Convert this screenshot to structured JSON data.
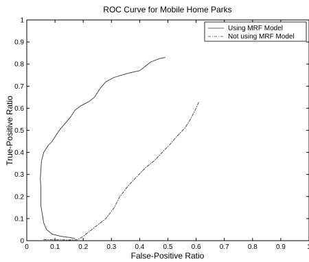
{
  "chart_data": {
    "type": "line",
    "title": "ROC Curve for Mobile Home Parks",
    "xlabel": "False-Positive Ratio",
    "ylabel": "True-Positive Ratio",
    "xlim": [
      0,
      1
    ],
    "ylim": [
      0,
      1
    ],
    "x_ticks": [
      "0",
      "0.1",
      "0.2",
      "0.3",
      "0.4",
      "0.5",
      "0.6",
      "0.7",
      "0.8",
      "0.9",
      "1"
    ],
    "y_ticks": [
      "0",
      "0.1",
      "0.2",
      "0.3",
      "0.4",
      "0.5",
      "0.6",
      "0.7",
      "0.8",
      "0.9",
      "1"
    ],
    "grid": false,
    "legend_position": "top-right",
    "series": [
      {
        "name": "Using MRF Model",
        "line_style": "solid",
        "color": "#333333",
        "points": [
          [
            0.17,
            0.01
          ],
          [
            0.15,
            0.015
          ],
          [
            0.12,
            0.02
          ],
          [
            0.09,
            0.03
          ],
          [
            0.07,
            0.05
          ],
          [
            0.06,
            0.08
          ],
          [
            0.055,
            0.12
          ],
          [
            0.05,
            0.16
          ],
          [
            0.05,
            0.2
          ],
          [
            0.05,
            0.24
          ],
          [
            0.048,
            0.28
          ],
          [
            0.05,
            0.32
          ],
          [
            0.052,
            0.36
          ],
          [
            0.06,
            0.4
          ],
          [
            0.075,
            0.43
          ],
          [
            0.09,
            0.45
          ],
          [
            0.1,
            0.47
          ],
          [
            0.115,
            0.5
          ],
          [
            0.135,
            0.53
          ],
          [
            0.155,
            0.56
          ],
          [
            0.17,
            0.59
          ],
          [
            0.19,
            0.61
          ],
          [
            0.22,
            0.63
          ],
          [
            0.24,
            0.65
          ],
          [
            0.26,
            0.69
          ],
          [
            0.28,
            0.72
          ],
          [
            0.31,
            0.74
          ],
          [
            0.35,
            0.755
          ],
          [
            0.38,
            0.765
          ],
          [
            0.4,
            0.77
          ],
          [
            0.42,
            0.79
          ],
          [
            0.44,
            0.81
          ],
          [
            0.47,
            0.825
          ],
          [
            0.49,
            0.83
          ]
        ]
      },
      {
        "name": "Not using MRF Model",
        "line_style": "dash-dot",
        "color": "#333333",
        "points": [
          [
            0.06,
            0.005
          ],
          [
            0.1,
            0.004
          ],
          [
            0.15,
            0.003
          ],
          [
            0.18,
            0.004
          ],
          [
            0.2,
            0.02
          ],
          [
            0.22,
            0.04
          ],
          [
            0.25,
            0.07
          ],
          [
            0.28,
            0.1
          ],
          [
            0.31,
            0.15
          ],
          [
            0.33,
            0.2
          ],
          [
            0.36,
            0.25
          ],
          [
            0.39,
            0.29
          ],
          [
            0.42,
            0.33
          ],
          [
            0.45,
            0.36
          ],
          [
            0.48,
            0.4
          ],
          [
            0.51,
            0.44
          ],
          [
            0.53,
            0.47
          ],
          [
            0.56,
            0.51
          ],
          [
            0.58,
            0.55
          ],
          [
            0.6,
            0.6
          ],
          [
            0.61,
            0.63
          ]
        ]
      }
    ]
  }
}
